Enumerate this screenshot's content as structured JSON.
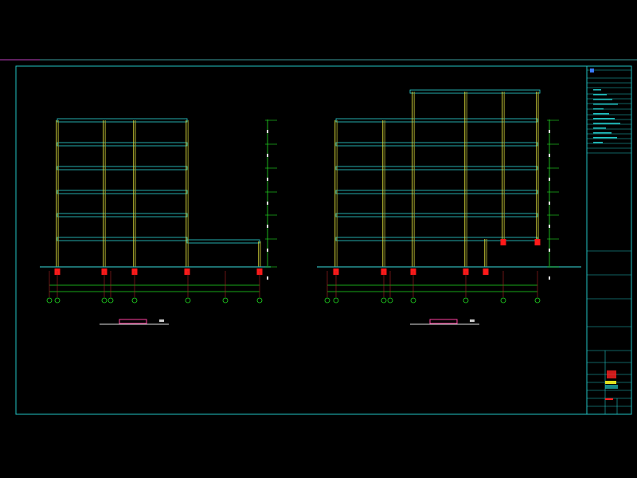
{
  "colors": {
    "background": "#000000",
    "frame": "#22c3c3",
    "beam": "#2fd6d6",
    "column": "#d6d63a",
    "foundation": "#ff1a1a",
    "dimension": "#22e022",
    "grid_bubble": "#22e022",
    "title_text": "#ff3fa0",
    "underline": "#e0e0e0",
    "ground": "#2fb4b4"
  },
  "drawings": [
    {
      "name": "left-elevation",
      "floors": 6,
      "column_grid_count": 8
    },
    {
      "name": "right-elevation",
      "floors": 6,
      "column_grid_count": 8
    }
  ],
  "title_block": {
    "rows": 24
  }
}
